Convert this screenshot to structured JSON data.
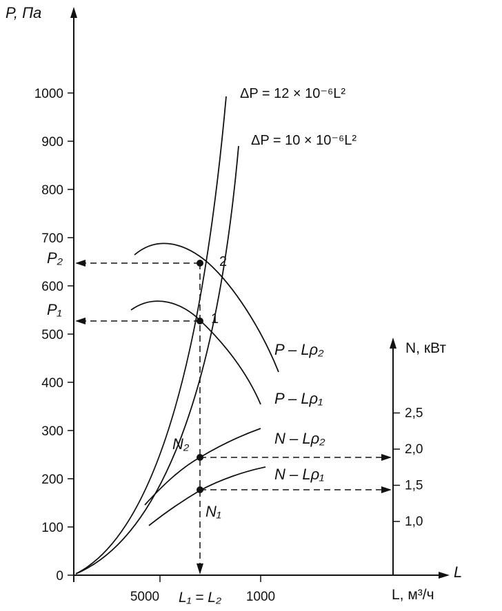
{
  "chart_data": {
    "type": "line",
    "left_axis": {
      "label": "P, Па",
      "ticks": [
        0,
        100,
        200,
        300,
        400,
        500,
        600,
        700,
        800,
        900,
        1000
      ],
      "ylim": [
        0,
        1000
      ]
    },
    "right_axis": {
      "label": "N, кВт",
      "ticks": [
        "1,0",
        "1,5",
        "2,0",
        "2,5"
      ]
    },
    "x_axis": {
      "label": "L, м³/ч",
      "arrow_label": "L",
      "ticks": [
        "5000",
        "1000"
      ],
      "marked_value": "L₁ = L₂"
    },
    "series": [
      {
        "name": "ΔP = 12 × 10⁻⁶L²"
      },
      {
        "name": "ΔP = 10 × 10⁻⁶L²"
      },
      {
        "name": "P – Lρ₂"
      },
      {
        "name": "P – Lρ₁"
      },
      {
        "name": "N – Lρ₂"
      },
      {
        "name": "N – Lρ₁"
      }
    ],
    "points": [
      {
        "label": "2",
        "value_label": "P₂",
        "P": 645
      },
      {
        "label": "1",
        "value_label": "P₁",
        "P": 525
      },
      {
        "label": "N₂",
        "N": 1.9
      },
      {
        "label": "N₁",
        "N": 1.43
      }
    ]
  }
}
